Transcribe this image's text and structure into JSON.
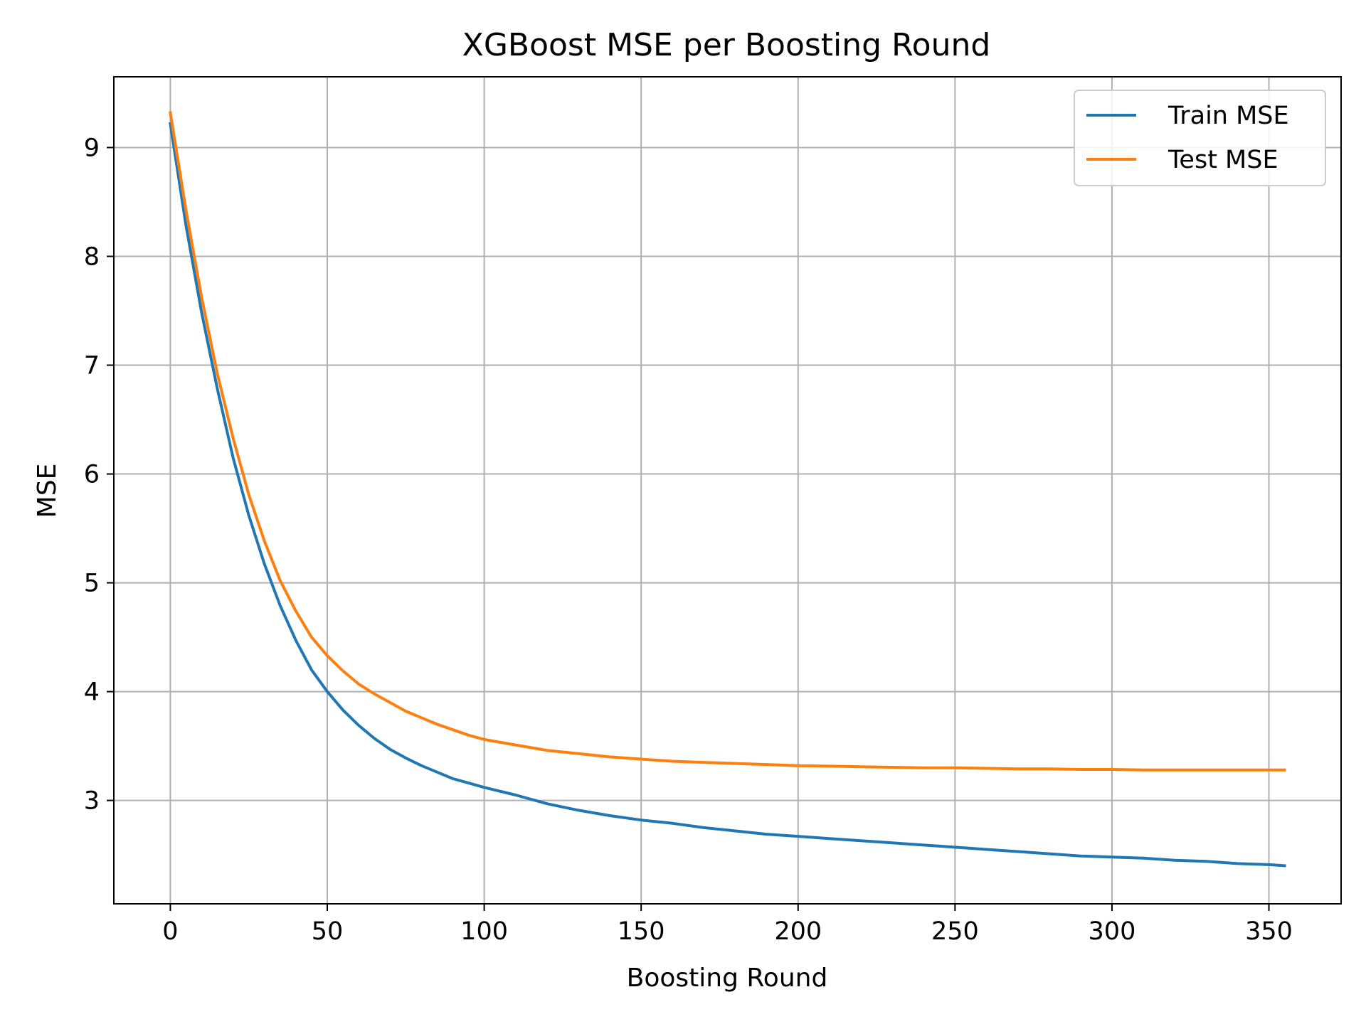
{
  "chart_data": {
    "type": "line",
    "title": "XGBoost MSE per Boosting Round",
    "xlabel": "Boosting Round",
    "ylabel": "MSE",
    "xlim": [
      -18,
      373
    ],
    "ylim": [
      2.05,
      9.65
    ],
    "xticks": [
      0,
      50,
      100,
      150,
      200,
      250,
      300,
      350
    ],
    "yticks": [
      3,
      4,
      5,
      6,
      7,
      8,
      9
    ],
    "grid": true,
    "legend_position": "top-right",
    "x": [
      0,
      5,
      10,
      15,
      20,
      25,
      30,
      35,
      40,
      45,
      50,
      55,
      60,
      65,
      70,
      75,
      80,
      85,
      90,
      95,
      100,
      110,
      120,
      130,
      140,
      150,
      160,
      170,
      180,
      190,
      200,
      210,
      220,
      230,
      240,
      250,
      260,
      270,
      280,
      290,
      300,
      310,
      320,
      330,
      340,
      350,
      355
    ],
    "series": [
      {
        "name": "Train MSE",
        "color": "#1f77b4",
        "values": [
          9.22,
          8.28,
          7.48,
          6.78,
          6.15,
          5.62,
          5.17,
          4.79,
          4.47,
          4.2,
          4.0,
          3.83,
          3.69,
          3.57,
          3.47,
          3.39,
          3.32,
          3.26,
          3.2,
          3.16,
          3.12,
          3.05,
          2.97,
          2.91,
          2.86,
          2.82,
          2.79,
          2.75,
          2.72,
          2.69,
          2.67,
          2.65,
          2.63,
          2.61,
          2.59,
          2.57,
          2.55,
          2.53,
          2.51,
          2.49,
          2.48,
          2.47,
          2.45,
          2.44,
          2.42,
          2.41,
          2.4
        ]
      },
      {
        "name": "Test MSE",
        "color": "#ff7f0e",
        "values": [
          9.32,
          8.42,
          7.62,
          6.92,
          6.33,
          5.81,
          5.38,
          5.02,
          4.74,
          4.5,
          4.33,
          4.19,
          4.07,
          3.98,
          3.9,
          3.82,
          3.76,
          3.7,
          3.65,
          3.6,
          3.56,
          3.51,
          3.46,
          3.43,
          3.4,
          3.38,
          3.36,
          3.35,
          3.34,
          3.33,
          3.32,
          3.315,
          3.31,
          3.305,
          3.3,
          3.3,
          3.295,
          3.29,
          3.29,
          3.285,
          3.285,
          3.28,
          3.28,
          3.28,
          3.28,
          3.28,
          3.28
        ]
      }
    ]
  }
}
